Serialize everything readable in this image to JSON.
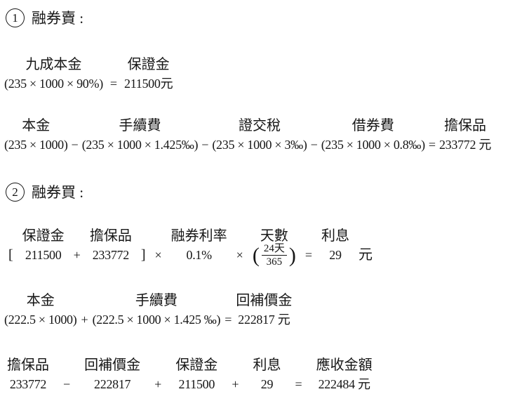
{
  "theme": {
    "background": "#ffffff",
    "text_color": "#161616"
  },
  "heading1": {
    "number": "1",
    "title": "融券賣 :"
  },
  "heading2": {
    "number": "2",
    "title": "融券買 :"
  },
  "block1": {
    "seg1": {
      "label": "九成本金",
      "formula": "(235 × 1000 × 90%)"
    },
    "op1": "=",
    "seg2": {
      "label": "保證金",
      "formula": "211500元"
    }
  },
  "block2": {
    "seg1": {
      "label": "本金",
      "formula": "(235 × 1000)"
    },
    "op1": "−",
    "seg2": {
      "label": "手續費",
      "formula": "(235 × 1000 × 1.425‰)"
    },
    "op2": "−",
    "seg3": {
      "label": "證交稅",
      "formula": "(235 × 1000 × 3‰)"
    },
    "op3": "−",
    "seg4": {
      "label": "借券費",
      "formula": "(235 × 1000 × 0.8‰)"
    },
    "op4": "=",
    "seg5": {
      "label": "擔保品",
      "formula": "233772 元"
    }
  },
  "block3": {
    "open_bracket": "[",
    "seg1": {
      "label": "保證金",
      "formula": "211500"
    },
    "op1": "+",
    "seg2": {
      "label": "擔保品",
      "formula": "233772"
    },
    "close_bracket": "]",
    "op2": "×",
    "seg3": {
      "label": "融券利率",
      "formula": "0.1%"
    },
    "op3": "×",
    "frac_seg": {
      "label": "天數",
      "open_paren": "(",
      "numerator": "24天",
      "denominator": "365",
      "close_paren": ")"
    },
    "op4": "=",
    "seg4": {
      "label": "利息",
      "formula": "29"
    },
    "unit": "元"
  },
  "block4": {
    "seg1": {
      "label": "本金",
      "formula": "(222.5 × 1000)"
    },
    "op1": "+",
    "seg2": {
      "label": "手續費",
      "formula": "(222.5 × 1000 × 1.425 ‰)"
    },
    "op2": "=",
    "seg3": {
      "label": "回補價金",
      "formula": "222817 元"
    }
  },
  "block5": {
    "seg1": {
      "label": "擔保品",
      "formula": "233772"
    },
    "op1": "−",
    "seg2": {
      "label": "回補價金",
      "formula": "222817"
    },
    "op2": "+",
    "seg3": {
      "label": "保證金",
      "formula": "211500"
    },
    "op3": "+",
    "seg4": {
      "label": "利息",
      "formula": "29"
    },
    "op4": "=",
    "seg5": {
      "label": "應收金額",
      "formula": "222484 元"
    }
  }
}
